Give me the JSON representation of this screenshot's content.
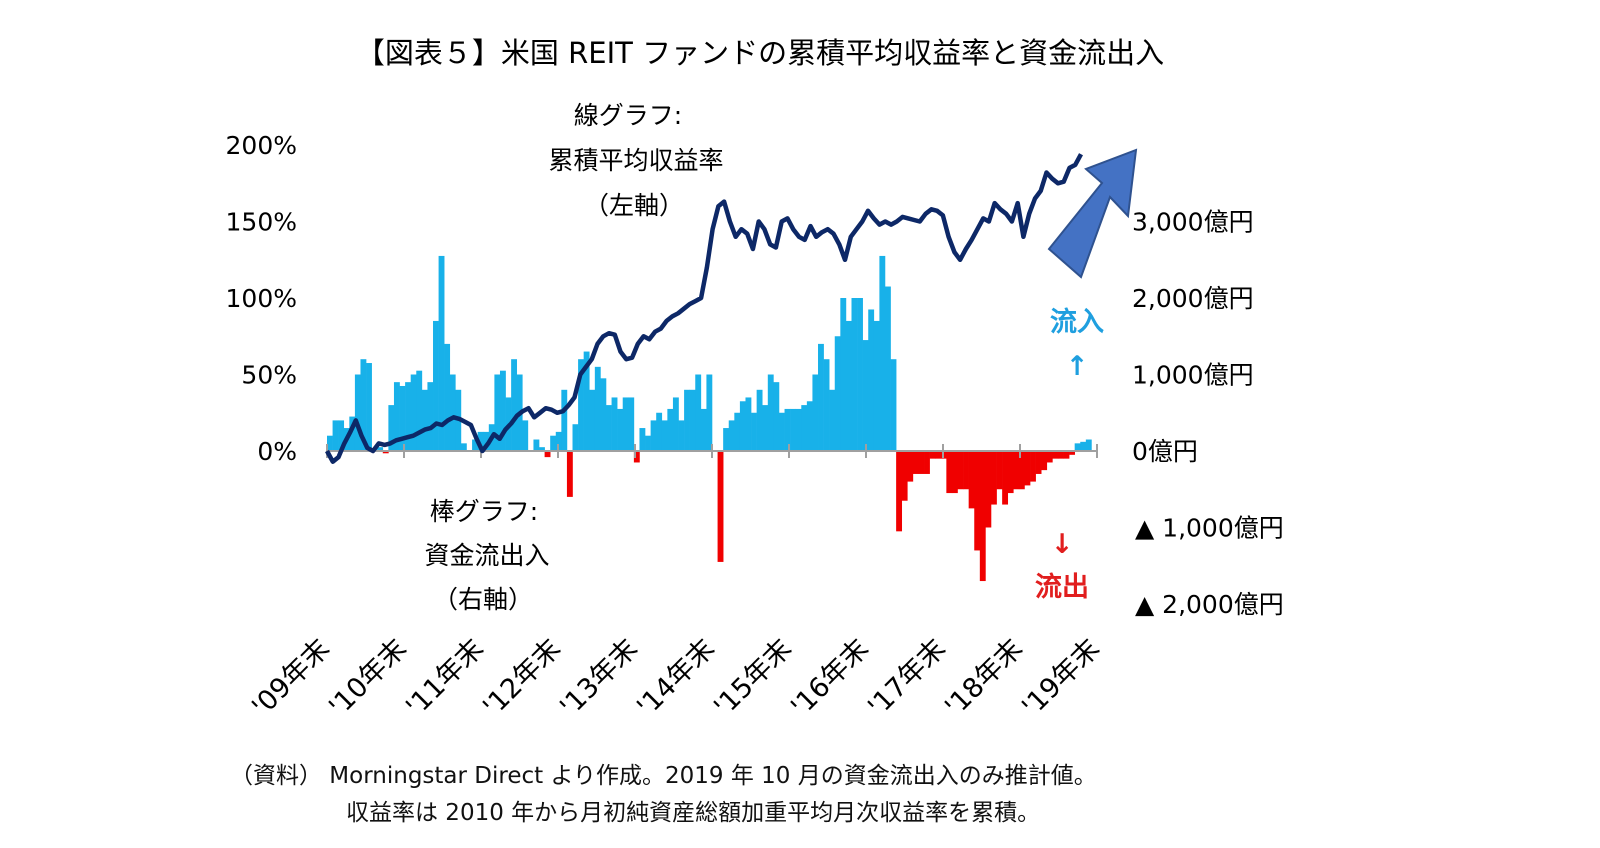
{
  "chart_data": {
    "type": "bar+line",
    "title": "【図表５】米国 REIT ファンドの累積平均収益率と資金流出入",
    "left_axis": {
      "ticks": [
        "0%",
        "50%",
        "100%",
        "150%",
        "200%"
      ],
      "range": [
        0,
        200
      ]
    },
    "right_axis": {
      "ticks": [
        "▲ 2,000億円",
        "▲ 1,000億円",
        "0億円",
        "1,000億円",
        "2,000億円",
        "3,000億円"
      ],
      "range": [
        -2000,
        3000
      ]
    },
    "x_labels": [
      "'09年末",
      "'10年末",
      "'11年末",
      "'12年末",
      "'13年末",
      "'14年末",
      "'15年末",
      "'16年末",
      "'17年末",
      "'18年末",
      "'19年末"
    ],
    "line_label": [
      "線グラフ:",
      "累積平均収益率",
      "（左軸）"
    ],
    "bar_label": [
      "棒グラフ:",
      "資金流出入",
      "（右軸）"
    ],
    "inflow_label": "流入",
    "outflow_label": "流出",
    "up_arrow": "↑",
    "down_arrow": "↓",
    "series": [
      {
        "name": "累積平均収益率",
        "unit": "%",
        "values": [
          0,
          -7,
          -4,
          5,
          12,
          20,
          10,
          2,
          0,
          5,
          4,
          5,
          7,
          8,
          9,
          10,
          12,
          14,
          15,
          18,
          17,
          20,
          22,
          21,
          19,
          17,
          8,
          0,
          5,
          11,
          8,
          14,
          18,
          23,
          26,
          28,
          22,
          25,
          28,
          27,
          25,
          26,
          30,
          35,
          50,
          55,
          60,
          70,
          75,
          77,
          76,
          65,
          60,
          61,
          70,
          75,
          73,
          78,
          80,
          85,
          88,
          90,
          93,
          96,
          98,
          100,
          120,
          145,
          160,
          163,
          150,
          140,
          145,
          142,
          132,
          150,
          145,
          135,
          133,
          150,
          152,
          145,
          140,
          138,
          147,
          140,
          143,
          145,
          142,
          135,
          125,
          140,
          145,
          150,
          157,
          152,
          148,
          150,
          148,
          150,
          153,
          152,
          151,
          150,
          155,
          158,
          157,
          154,
          140,
          130,
          125,
          132,
          138,
          145,
          152,
          150,
          162,
          158,
          155,
          150,
          162,
          140,
          155,
          165,
          170,
          182,
          178,
          175,
          176,
          185,
          187,
          194
        ]
      },
      {
        "name": "資金流出入",
        "unit": "億円",
        "values": [
          200,
          400,
          400,
          300,
          450,
          1000,
          1200,
          1150,
          20,
          50,
          -30,
          600,
          900,
          850,
          900,
          1000,
          1050,
          800,
          900,
          1700,
          2550,
          1400,
          1000,
          800,
          100,
          0,
          150,
          250,
          250,
          350,
          1000,
          1050,
          700,
          1200,
          1000,
          400,
          0,
          150,
          50,
          -80,
          200,
          250,
          800,
          -600,
          350,
          1200,
          1300,
          800,
          1100,
          950,
          600,
          700,
          550,
          700,
          700,
          -150,
          300,
          200,
          400,
          500,
          400,
          550,
          700,
          400,
          800,
          800,
          1000,
          550,
          1000,
          0,
          -1450,
          300,
          400,
          500,
          650,
          700,
          500,
          800,
          600,
          1000,
          900,
          500,
          550,
          550,
          550,
          600,
          650,
          1000,
          1400,
          1200,
          800,
          1500,
          2000,
          1700,
          2000,
          2000,
          1450,
          1850,
          1700,
          2550,
          2150,
          1200,
          -1050,
          -650,
          -400,
          -300,
          -300,
          -300,
          -100,
          -100,
          -100,
          -550,
          -550,
          -500,
          -500,
          -750,
          -1300,
          -1700,
          -1000,
          -700,
          -500,
          -700,
          -550,
          -500,
          -500,
          -450,
          -400,
          -300,
          -250,
          -150,
          -100,
          -100,
          -100,
          -50,
          100,
          120,
          150,
          0
        ]
      }
    ],
    "arrow_colors": {
      "line": "#0D2867",
      "bar_pos": "#18B1E9",
      "bar_neg": "#F00000",
      "arrow": "#4472C4",
      "inflow": "#1F9FDF",
      "outflow": "#E11E1E"
    }
  },
  "source_note": [
    "（資料） Morningstar Direct より作成。2019 年 10 月の資金流出入のみ推計値。",
    "収益率は 2010 年から月初純資産総額加重平均月次収益率を累積。"
  ]
}
